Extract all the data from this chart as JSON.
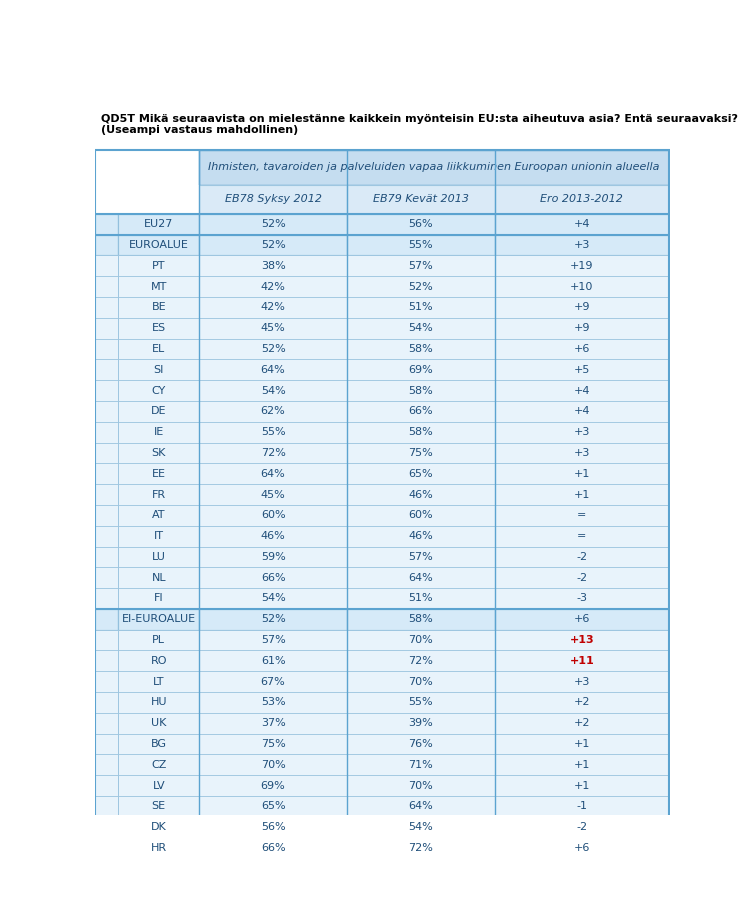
{
  "title": "QD5T Mikä seuraavista on mielestänne kaikkein myönteisin EU:sta aiheutuva asia? Entä seuraavaksi? (Useampi vastaus mahdollinen)",
  "header_main": "Ihmisten, tavaroiden ja palveluiden vapaa liikkuminen Euroopan unionin alueella",
  "col1": "EB78 Syksy 2012",
  "col2": "EB79 Kevät 2013",
  "col3": "Ero 2013-2012",
  "rows": [
    {
      "label": "EU27",
      "v1": "52%",
      "v2": "56%",
      "v3": "+4",
      "type": "group"
    },
    {
      "label": "EUROALUE",
      "v1": "52%",
      "v2": "55%",
      "v3": "+3",
      "type": "subgroup"
    },
    {
      "label": "PT",
      "v1": "38%",
      "v2": "57%",
      "v3": "+19",
      "type": "country"
    },
    {
      "label": "MT",
      "v1": "42%",
      "v2": "52%",
      "v3": "+10",
      "type": "country"
    },
    {
      "label": "BE",
      "v1": "42%",
      "v2": "51%",
      "v3": "+9",
      "type": "country"
    },
    {
      "label": "ES",
      "v1": "45%",
      "v2": "54%",
      "v3": "+9",
      "type": "country"
    },
    {
      "label": "EL",
      "v1": "52%",
      "v2": "58%",
      "v3": "+6",
      "type": "country"
    },
    {
      "label": "SI",
      "v1": "64%",
      "v2": "69%",
      "v3": "+5",
      "type": "country"
    },
    {
      "label": "CY",
      "v1": "54%",
      "v2": "58%",
      "v3": "+4",
      "type": "country"
    },
    {
      "label": "DE",
      "v1": "62%",
      "v2": "66%",
      "v3": "+4",
      "type": "country"
    },
    {
      "label": "IE",
      "v1": "55%",
      "v2": "58%",
      "v3": "+3",
      "type": "country"
    },
    {
      "label": "SK",
      "v1": "72%",
      "v2": "75%",
      "v3": "+3",
      "type": "country"
    },
    {
      "label": "EE",
      "v1": "64%",
      "v2": "65%",
      "v3": "+1",
      "type": "country"
    },
    {
      "label": "FR",
      "v1": "45%",
      "v2": "46%",
      "v3": "+1",
      "type": "country"
    },
    {
      "label": "AT",
      "v1": "60%",
      "v2": "60%",
      "v3": "=",
      "type": "country"
    },
    {
      "label": "IT",
      "v1": "46%",
      "v2": "46%",
      "v3": "=",
      "type": "country"
    },
    {
      "label": "LU",
      "v1": "59%",
      "v2": "57%",
      "v3": "-2",
      "type": "country"
    },
    {
      "label": "NL",
      "v1": "66%",
      "v2": "64%",
      "v3": "-2",
      "type": "country"
    },
    {
      "label": "FI",
      "v1": "54%",
      "v2": "51%",
      "v3": "-3",
      "type": "country"
    },
    {
      "label": "EI-EUROALUE",
      "v1": "52%",
      "v2": "58%",
      "v3": "+6",
      "type": "subgroup"
    },
    {
      "label": "PL",
      "v1": "57%",
      "v2": "70%",
      "v3": "+13",
      "type": "country"
    },
    {
      "label": "RO",
      "v1": "61%",
      "v2": "72%",
      "v3": "+11",
      "type": "country"
    },
    {
      "label": "LT",
      "v1": "67%",
      "v2": "70%",
      "v3": "+3",
      "type": "country"
    },
    {
      "label": "HU",
      "v1": "53%",
      "v2": "55%",
      "v3": "+2",
      "type": "country"
    },
    {
      "label": "UK",
      "v1": "37%",
      "v2": "39%",
      "v3": "+2",
      "type": "country"
    },
    {
      "label": "BG",
      "v1": "75%",
      "v2": "76%",
      "v3": "+1",
      "type": "country"
    },
    {
      "label": "CZ",
      "v1": "70%",
      "v2": "71%",
      "v3": "+1",
      "type": "country"
    },
    {
      "label": "LV",
      "v1": "69%",
      "v2": "70%",
      "v3": "+1",
      "type": "country"
    },
    {
      "label": "SE",
      "v1": "65%",
      "v2": "64%",
      "v3": "-1",
      "type": "country"
    },
    {
      "label": "DK",
      "v1": "56%",
      "v2": "54%",
      "v3": "-2",
      "type": "country"
    },
    {
      "label": "HR",
      "v1": "66%",
      "v2": "72%",
      "v3": "+6",
      "type": "country"
    }
  ],
  "colors": {
    "header_bg": "#c5ddf0",
    "subheader_bg": "#daeaf7",
    "row_bg_country": "#e8f3fb",
    "row_bg_group": "#d6eaf8",
    "border_light": "#9ec6e0",
    "border_heavy": "#5ba3d0",
    "text_blue": "#1f4e79",
    "text_bold_red": "#c00000",
    "title_color": "#000000",
    "bg_white": "#ffffff"
  },
  "bold_diff_labels": [
    "PL",
    "RO"
  ],
  "figsize": [
    7.47,
    9.16
  ],
  "dpi": 100
}
